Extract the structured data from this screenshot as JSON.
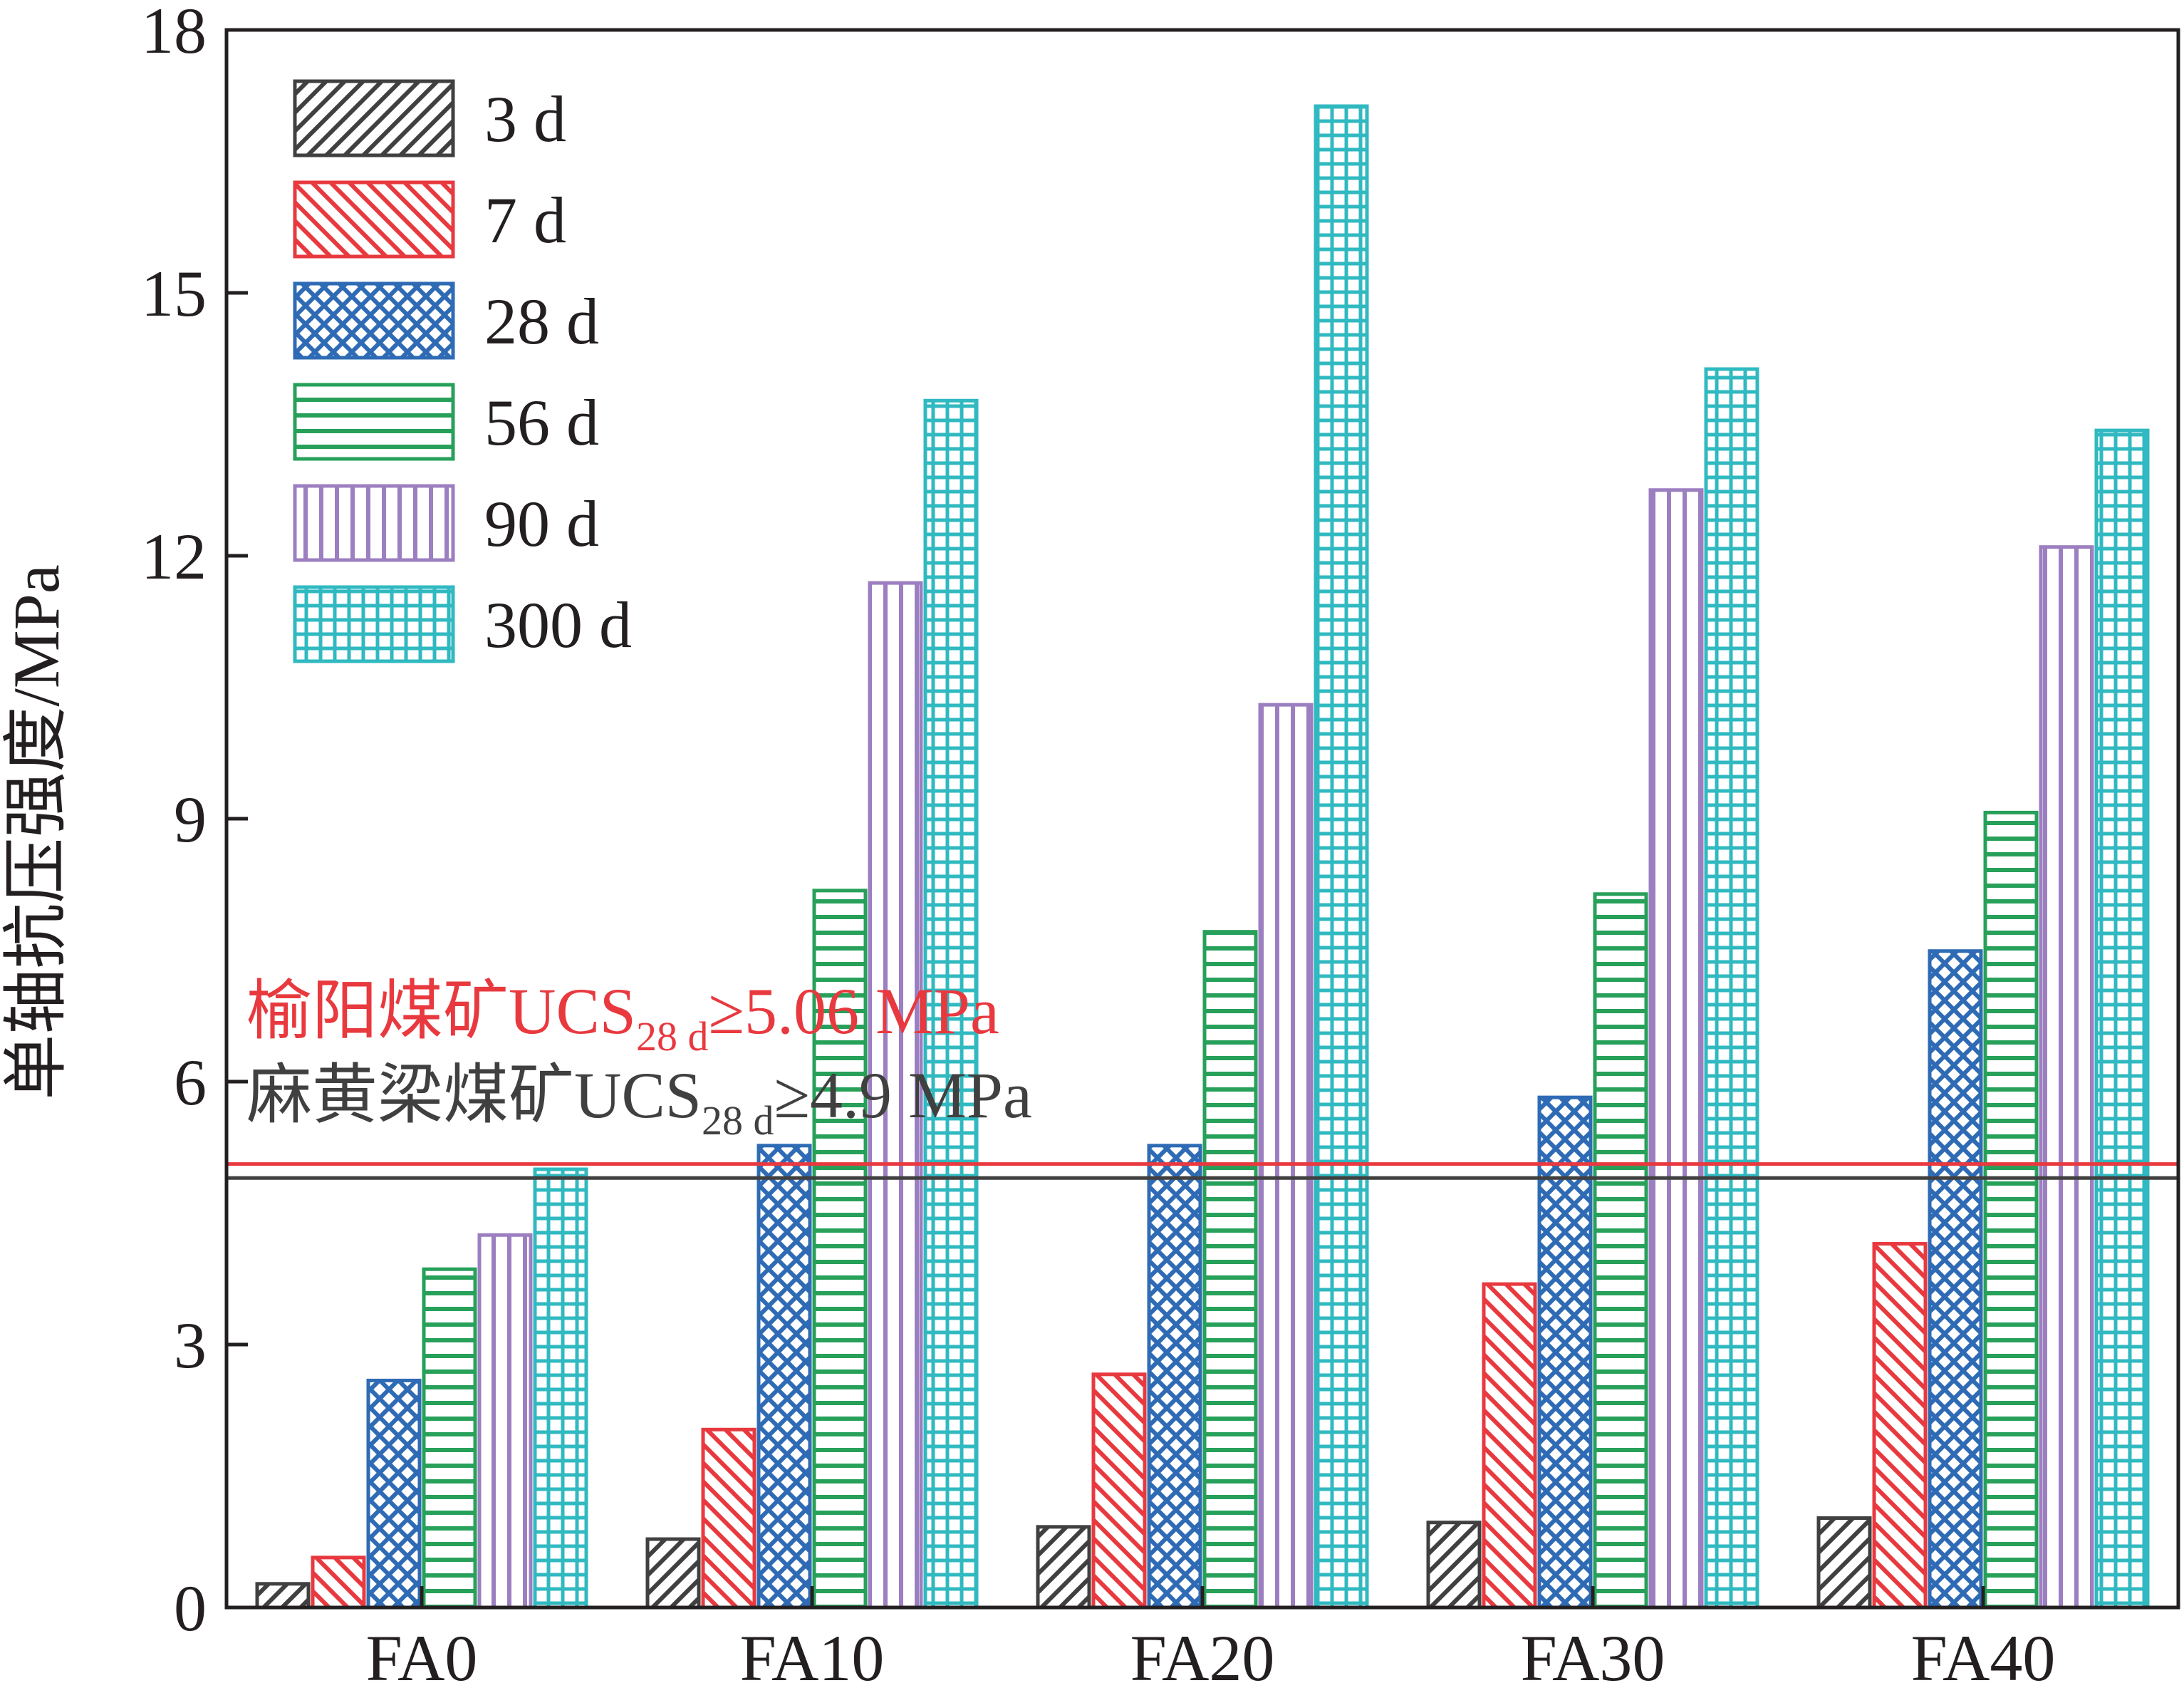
{
  "chart_data": {
    "type": "bar",
    "ylabel": "单轴抗压强度/MPa",
    "xlabel": "",
    "ylim": [
      0,
      18
    ],
    "yticks": [
      0,
      3,
      6,
      9,
      12,
      15,
      18
    ],
    "legend_position": "top-left",
    "grid": false,
    "categories": [
      "FA0",
      "FA10",
      "FA20",
      "FA30",
      "FA40"
    ],
    "series": [
      {
        "name": "3 d",
        "color": "#404040",
        "pattern": "diagonal-up",
        "values": [
          0.27,
          0.78,
          0.92,
          0.97,
          1.02
        ]
      },
      {
        "name": "7 d",
        "color": "#e8393f",
        "pattern": "diagonal-down",
        "values": [
          0.57,
          2.03,
          2.66,
          3.69,
          4.15
        ]
      },
      {
        "name": "28 d",
        "color": "#2f6bb5",
        "pattern": "crosshatch",
        "values": [
          2.59,
          5.27,
          5.27,
          5.82,
          7.49
        ]
      },
      {
        "name": "56 d",
        "color": "#27a05a",
        "pattern": "horizontal",
        "values": [
          3.86,
          8.18,
          7.71,
          8.14,
          9.07
        ]
      },
      {
        "name": "90 d",
        "color": "#9b7fc0",
        "pattern": "vertical",
        "values": [
          4.25,
          11.69,
          10.3,
          12.75,
          12.1
        ]
      },
      {
        "name": "300 d",
        "color": "#30b9c0",
        "pattern": "grid",
        "values": [
          5.0,
          13.77,
          17.13,
          14.13,
          13.43
        ]
      }
    ],
    "reference_lines": [
      {
        "value": 5.06,
        "color": "#e8393f",
        "prefix": "榆阳煤矿UCS",
        "subscript": "28 d",
        "suffix": "≥5.06 MPa"
      },
      {
        "value": 4.9,
        "color": "#404040",
        "prefix": "麻黄梁煤矿UCS",
        "subscript": "28 d",
        "suffix": "≥4.9 MPa"
      }
    ]
  }
}
